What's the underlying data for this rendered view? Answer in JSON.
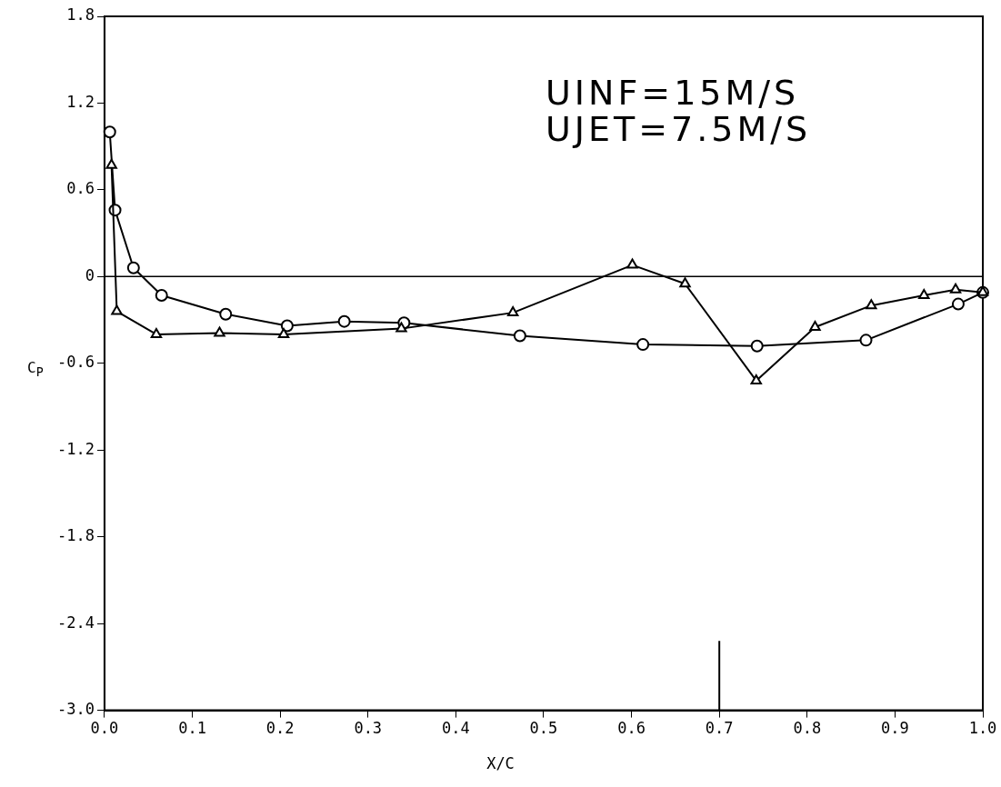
{
  "chart_data": {
    "type": "line",
    "xlabel": "X/C",
    "ylabel": "C$_{P}$",
    "annotations": [
      "UINF=15M/S",
      "UJET=7.5M/S"
    ],
    "xlim": [
      0,
      1.0
    ],
    "xticks": [
      {
        "value": 0,
        "label": "0.0"
      },
      0.1,
      0.2,
      0.3,
      0.4,
      0.5,
      0.6,
      0.7,
      0.8,
      0.9,
      {
        "value": 1,
        "label": "1.0"
      }
    ],
    "ylim": [
      -3.0,
      1.8
    ],
    "yticks": [
      {
        "value": -3,
        "label": "-3.0"
      },
      -2.4,
      -1.8,
      -1.2,
      -0.6,
      0,
      0.6,
      1.2,
      1.8
    ],
    "grid": false,
    "legend": false,
    "line_style": "solid",
    "ref_lines": [
      {
        "axis": "y",
        "value": 0,
        "color": "#000000"
      }
    ],
    "series": [
      {
        "color": "#000000",
        "marker": "circle",
        "x": [
          0.006,
          0.012,
          0.033,
          0.065,
          0.138,
          0.208,
          0.273,
          0.341,
          0.473,
          0.613,
          0.743,
          0.867,
          0.972,
          1.0
        ],
        "values": [
          1.0,
          0.46,
          0.06,
          -0.13,
          -0.26,
          -0.34,
          -0.31,
          -0.32,
          -0.41,
          -0.47,
          -0.48,
          -0.44,
          -0.19,
          -0.11
        ]
      },
      {
        "color": "#000000",
        "marker": "triangle",
        "x": [
          0.008,
          0.014,
          0.059,
          0.131,
          0.204,
          0.338,
          0.465,
          0.601,
          0.661,
          0.742,
          0.809,
          0.873,
          0.933,
          0.969,
          1.0
        ],
        "values": [
          0.77,
          -0.24,
          -0.4,
          -0.39,
          -0.4,
          -0.36,
          -0.25,
          0.08,
          -0.05,
          -0.72,
          -0.35,
          -0.2,
          -0.13,
          -0.09,
          -0.11
        ]
      },
      {
        "color": "#000000",
        "marker": "none",
        "x": [
          0.7,
          0.7
        ],
        "values": [
          -3.0,
          -2.52
        ]
      }
    ]
  }
}
